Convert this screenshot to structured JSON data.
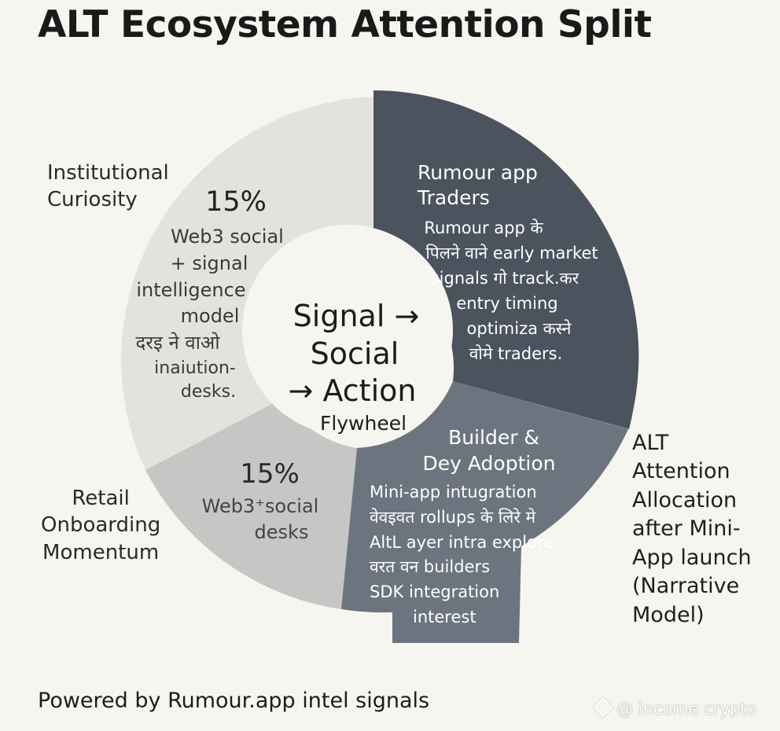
{
  "title": "ALT Ecosystem Attention Split",
  "footer": "Powered by Rumour.app intel signals",
  "watermark": "@ income crypto",
  "external_labels": {
    "institutional": [
      "Institutional",
      "Curiosity"
    ],
    "retail": [
      "Retail",
      "Onboarding",
      "Momentum"
    ],
    "alt": [
      "ALT",
      "Attention",
      "Allocation",
      "after Mini-",
      "App launch",
      "(Narrative",
      "Model)"
    ]
  },
  "center": {
    "lines": [
      "Signal →",
      "Social",
      "→ Action"
    ],
    "sub": "Flywheel"
  },
  "colors": {
    "institutional": "#e4e2dc",
    "retail": "#c6c6c4",
    "builder": "#6c757f",
    "traders": "#4b535e",
    "hub": "#f7f5f0"
  },
  "chart_data": {
    "type": "pie",
    "title": "ALT Ecosystem Attention Split",
    "center_label": "Signal → Social → Action Flywheel",
    "slices": [
      {
        "name": "Rumour app Traders",
        "heading": [
          "Rumour app",
          "Traders"
        ],
        "text": [
          "Rumour app के",
          "पिलने वाने early market",
          "signals गो track.कर",
          "entry timing",
          "optimiza कस्ने",
          "वोमे traders."
        ]
      },
      {
        "name": "Builder & Dey Adoption",
        "heading": [
          "Builder &",
          "Dey Adoption"
        ],
        "text": [
          "Mini-app intugration",
          "वेवइवत rollups के लिरे मे",
          "AltL ayer intra explore",
          "वरत वन builders",
          "SDK integration",
          "interest"
        ]
      },
      {
        "name": "Retail Onboarding Momentum",
        "value_label": "15%",
        "value": 15,
        "text": [
          "Web3⁺social",
          "desks"
        ]
      },
      {
        "name": "Institutional Curiosity",
        "value_label": "15%",
        "value": 15,
        "text": [
          "Web3 social",
          "+ signal",
          "intelligence",
          "model",
          "दरइ ने वाओ",
          "inaiution-",
          "desks."
        ]
      }
    ]
  }
}
